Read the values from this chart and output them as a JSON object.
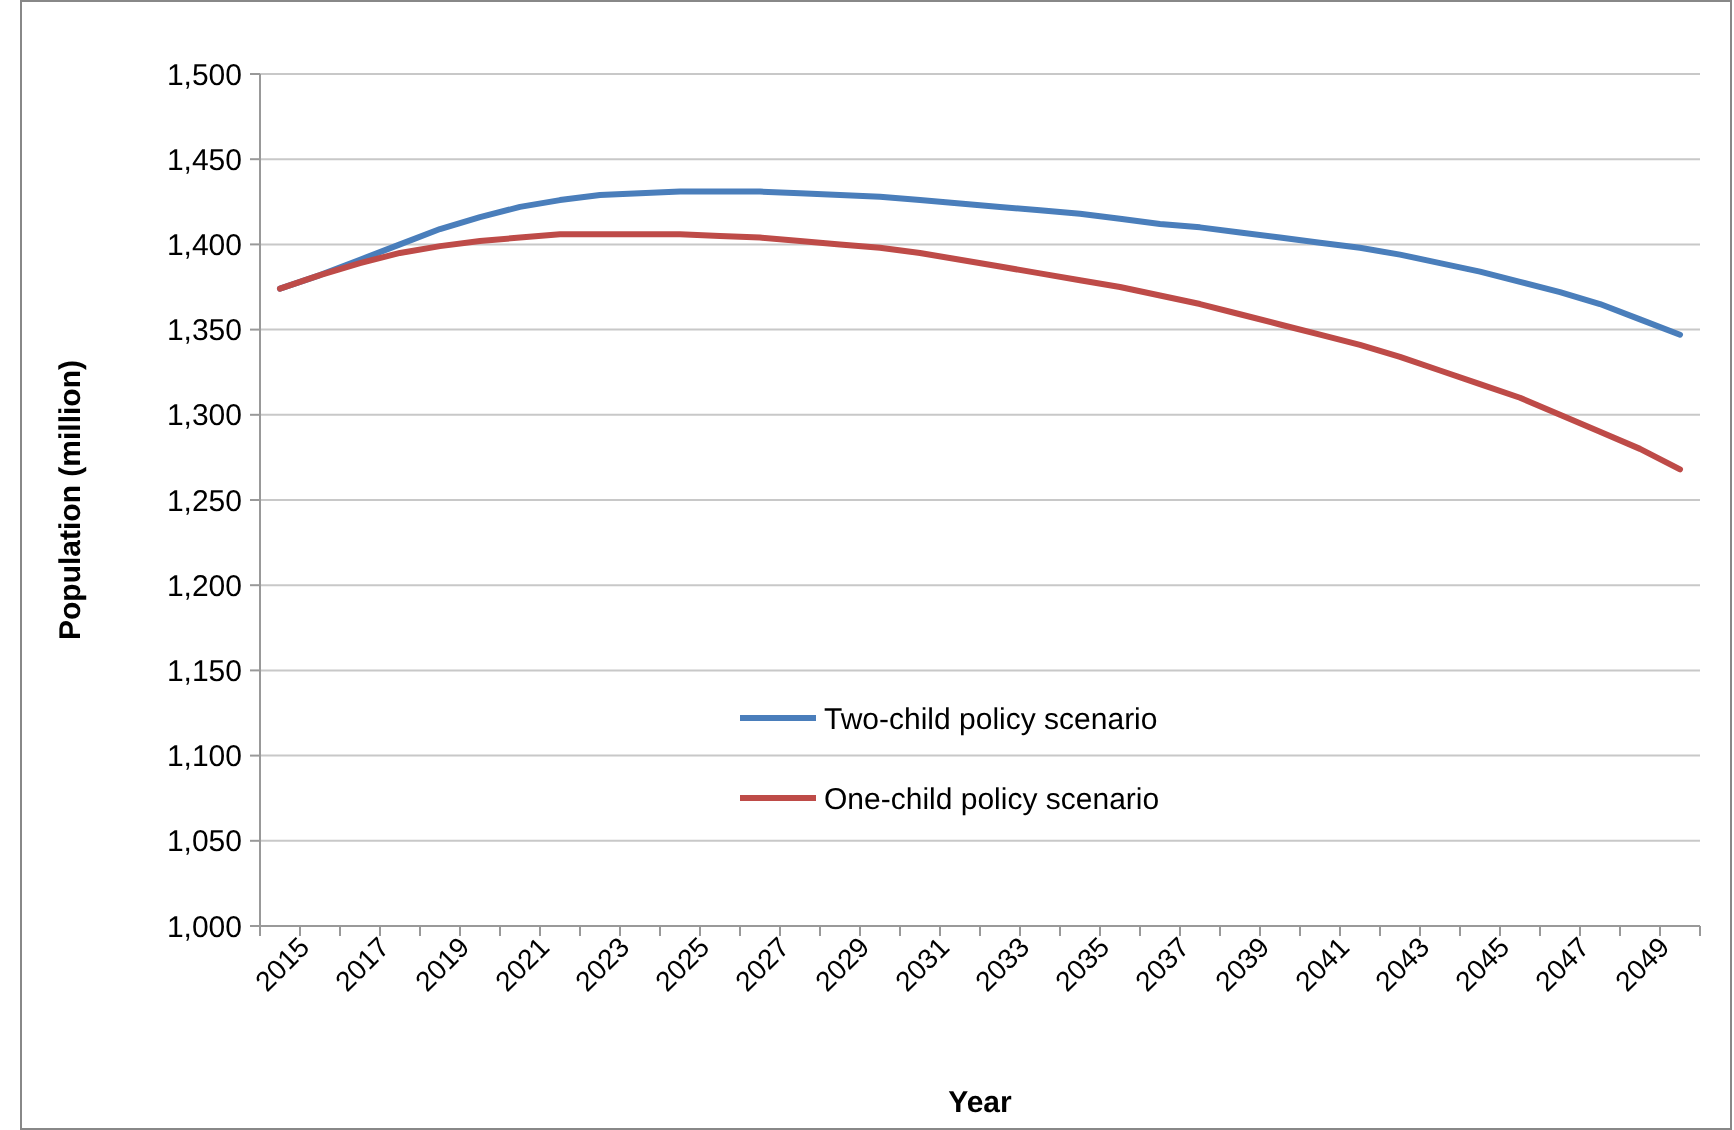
{
  "chart_data": {
    "type": "line",
    "xlabel": "Year",
    "ylabel": "Population (million)",
    "categories": [
      "2015",
      null,
      "2017",
      null,
      "2019",
      null,
      "2021",
      null,
      "2023",
      null,
      "2025",
      null,
      "2027",
      null,
      "2029",
      null,
      "2031",
      null,
      "2033",
      null,
      "2035",
      null,
      "2037",
      null,
      "2039",
      null,
      "2041",
      null,
      "2043",
      null,
      "2045",
      null,
      "2047",
      null,
      "2049",
      null
    ],
    "series": [
      {
        "name": "Two-child policy scenario",
        "color": "#4a7ebb",
        "values": [
          1374,
          1382,
          1391,
          1400,
          1409,
          1416,
          1422,
          1426,
          1429,
          1430,
          1431,
          1431,
          1431,
          1430,
          1429,
          1428,
          1426,
          1424,
          1422,
          1420,
          1418,
          1415,
          1412,
          1410,
          1407,
          1404,
          1401,
          1398,
          1394,
          1389,
          1384,
          1378,
          1372,
          1365,
          1356,
          1347
        ]
      },
      {
        "name": "One-child policy scenario",
        "color": "#be4b48",
        "values": [
          1374,
          1382,
          1389,
          1395,
          1399,
          1402,
          1404,
          1406,
          1406,
          1406,
          1406,
          1405,
          1404,
          1402,
          1400,
          1398,
          1395,
          1391,
          1387,
          1383,
          1379,
          1375,
          1370,
          1365,
          1359,
          1353,
          1347,
          1341,
          1334,
          1326,
          1318,
          1310,
          1300,
          1290,
          1280,
          1268
        ]
      }
    ],
    "ylim": [
      1000,
      1500
    ],
    "yticks": [
      {
        "value": 1000,
        "label": "1,000"
      },
      {
        "value": 1050,
        "label": "1,050"
      },
      {
        "value": 1100,
        "label": "1,100"
      },
      {
        "value": 1150,
        "label": "1,150"
      },
      {
        "value": 1200,
        "label": "1,200"
      },
      {
        "value": 1250,
        "label": "1,250"
      },
      {
        "value": 1300,
        "label": "1,300"
      },
      {
        "value": 1350,
        "label": "1,350"
      },
      {
        "value": 1400,
        "label": "1,400"
      },
      {
        "value": 1450,
        "label": "1,450"
      },
      {
        "value": 1500,
        "label": "1,500"
      }
    ],
    "grid": "y",
    "legend": "center",
    "marker": "none",
    "line_style": "solid"
  }
}
